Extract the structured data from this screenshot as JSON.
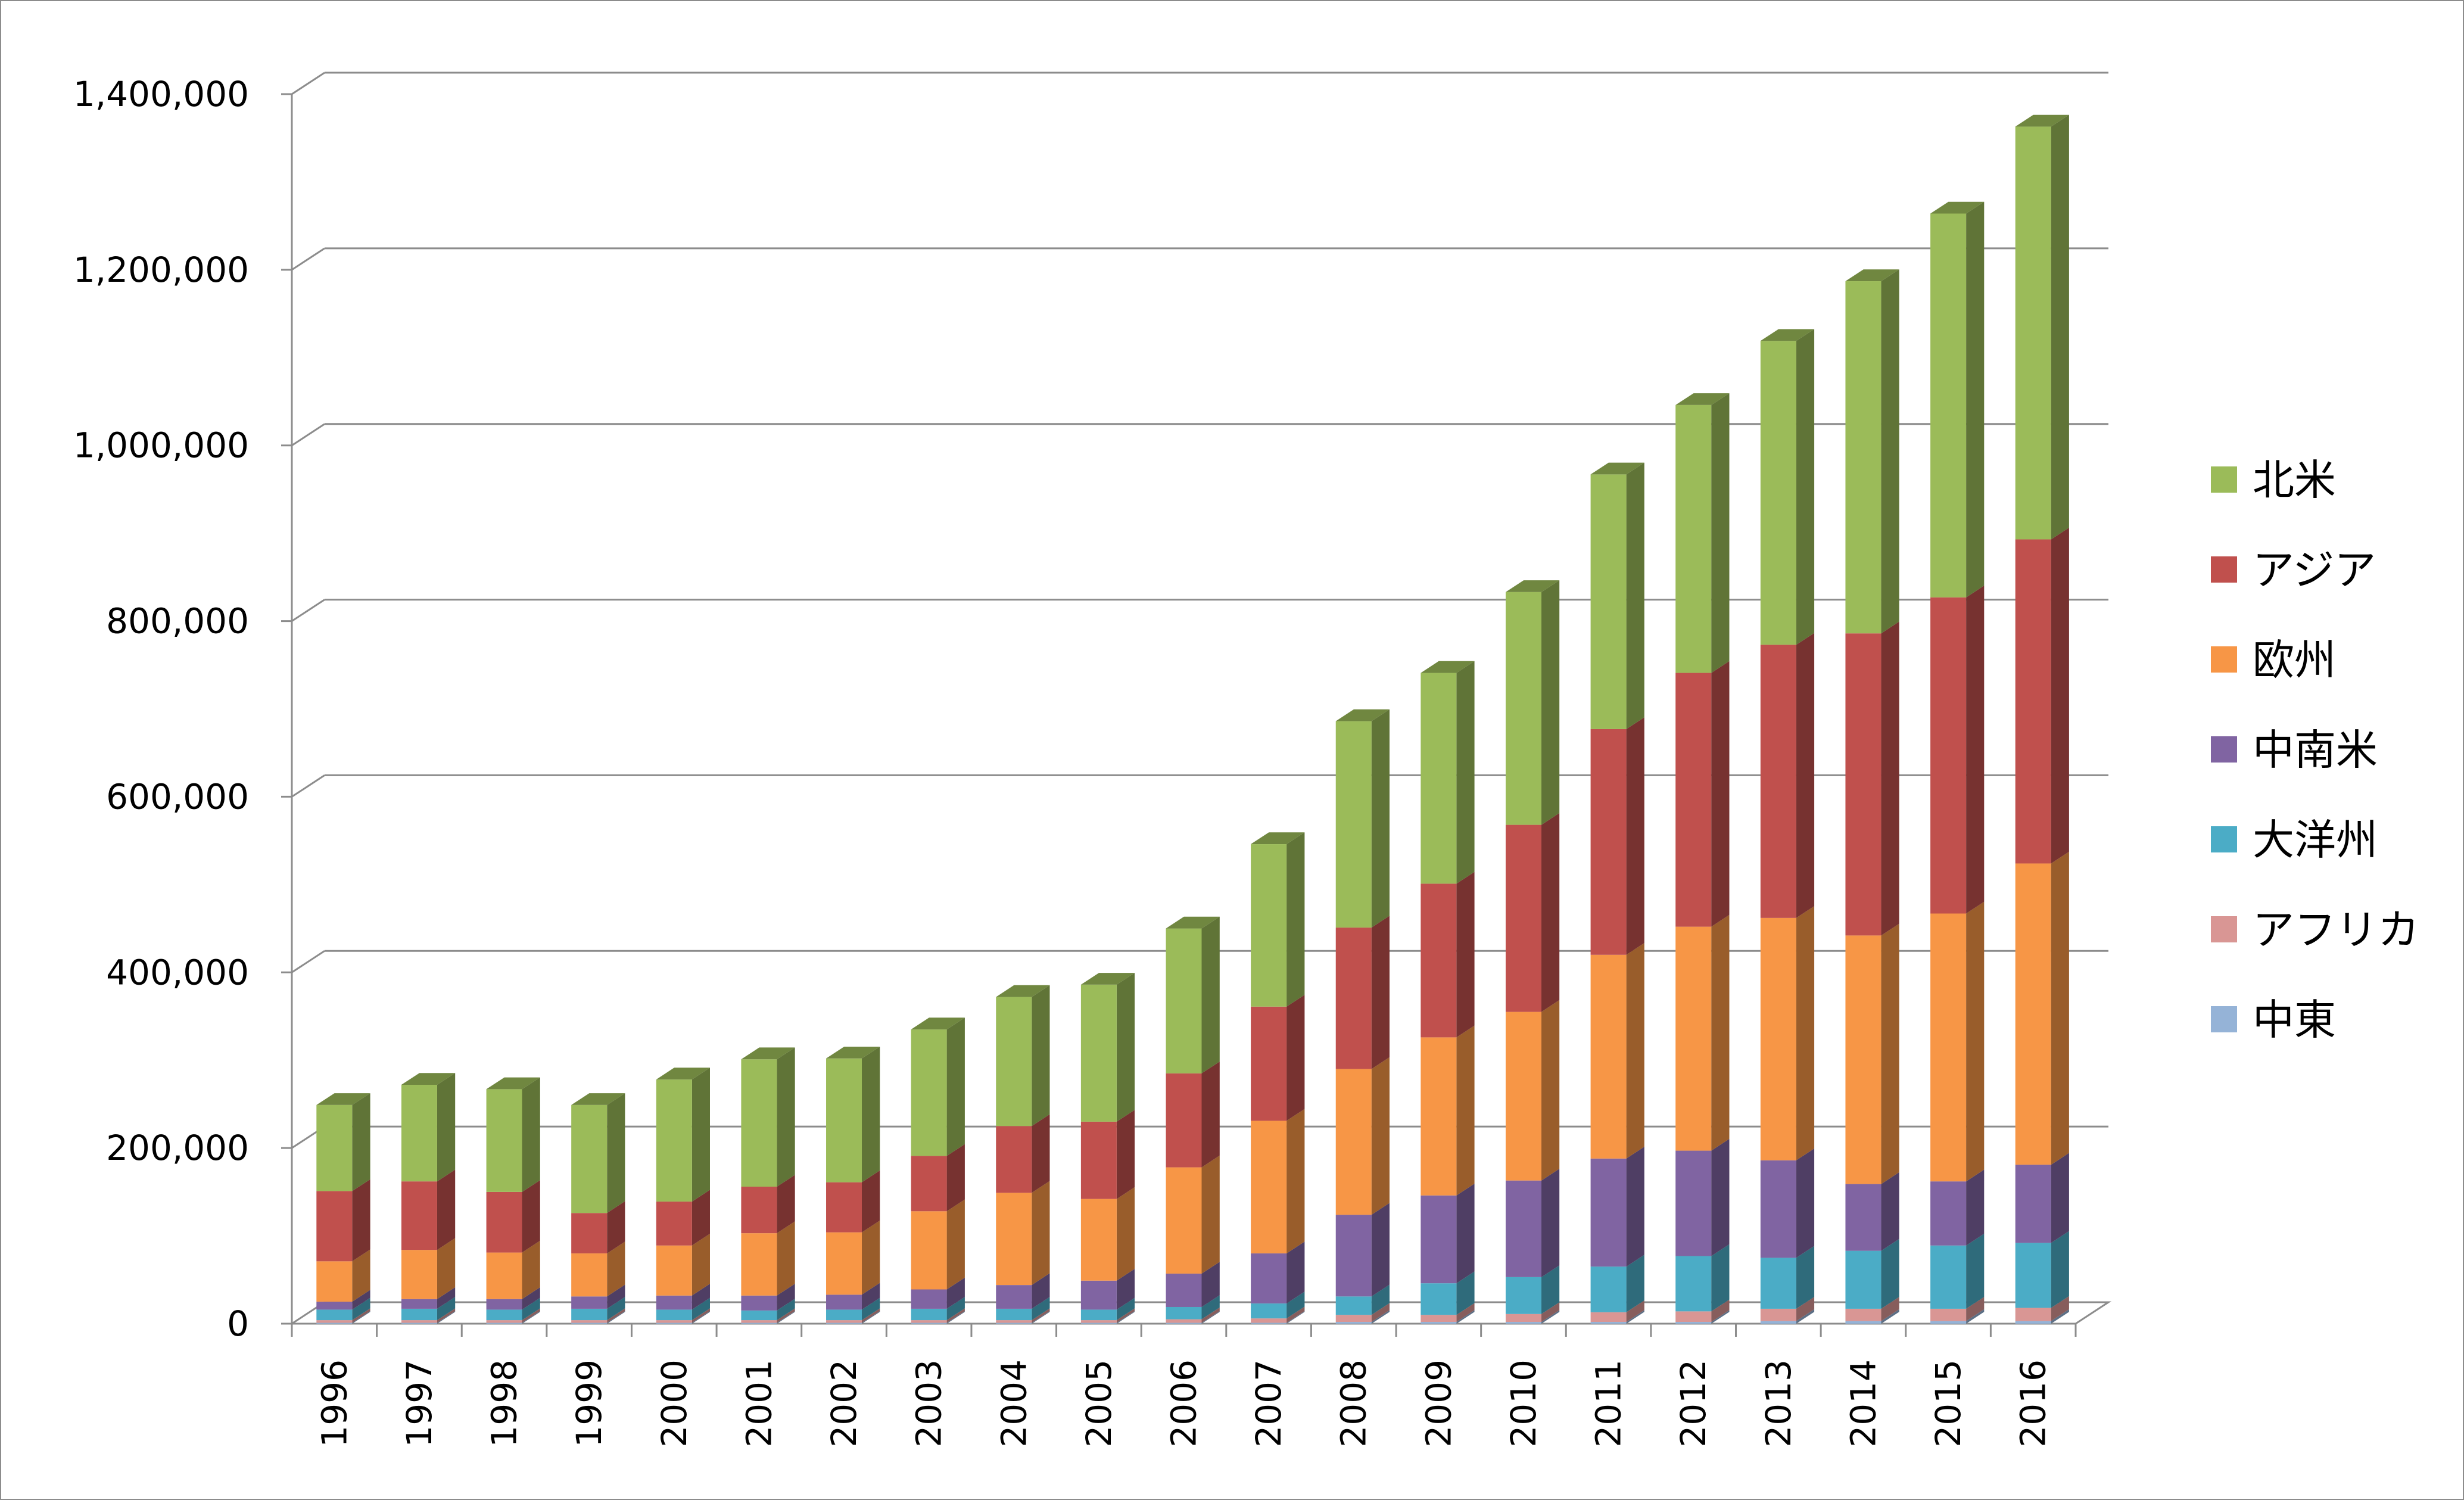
{
  "chart_data": {
    "type": "bar",
    "stacked": true,
    "three_d": true,
    "categories": [
      "1996",
      "1997",
      "1998",
      "1999",
      "2000",
      "2001",
      "2002",
      "2003",
      "2004",
      "2005",
      "2006",
      "2007",
      "2008",
      "2009",
      "2010",
      "2011",
      "2012",
      "2013",
      "2014",
      "2015",
      "2016"
    ],
    "ylim": [
      0,
      1400000
    ],
    "yticks": [
      0,
      200000,
      400000,
      600000,
      800000,
      1000000,
      1200000,
      1400000
    ],
    "ytick_labels": [
      "0",
      "200,000",
      "400,000",
      "600,000",
      "800,000",
      "1,000,000",
      "1,200,000",
      "1,400,000"
    ],
    "grid": true,
    "legend_position": "right",
    "series": [
      {
        "name": "中東",
        "color": "#95b3d7",
        "values": [
          1000,
          1000,
          1000,
          1000,
          1000,
          1000,
          1000,
          1000,
          1000,
          1000,
          1000,
          1000,
          2000,
          2000,
          2000,
          2000,
          2000,
          3000,
          3000,
          3000,
          3000
        ]
      },
      {
        "name": "アフリカ",
        "color": "#d99694",
        "values": [
          3000,
          3000,
          3000,
          3000,
          3000,
          3000,
          3000,
          3000,
          3000,
          3000,
          4000,
          5000,
          8000,
          8000,
          9000,
          11000,
          12000,
          14000,
          14000,
          14000,
          15000
        ]
      },
      {
        "name": "大洋州",
        "color": "#4bacc6",
        "values": [
          12000,
          13000,
          12000,
          13000,
          12000,
          11000,
          12000,
          13000,
          13000,
          12000,
          14000,
          17000,
          21000,
          36000,
          42000,
          52000,
          63000,
          58000,
          66000,
          72000,
          74000
        ]
      },
      {
        "name": "中南米",
        "color": "#8064a2",
        "values": [
          9000,
          11000,
          12000,
          14000,
          16000,
          17000,
          17000,
          22000,
          27000,
          33000,
          38000,
          57000,
          93000,
          100000,
          110000,
          123000,
          120000,
          111000,
          76000,
          73000,
          89000
        ]
      },
      {
        "name": "欧州",
        "color": "#f79646",
        "values": [
          46000,
          56000,
          53000,
          49000,
          57000,
          71000,
          71000,
          89000,
          105000,
          93000,
          121000,
          151000,
          166000,
          180000,
          192000,
          232000,
          255000,
          276000,
          283000,
          305000,
          343000
        ]
      },
      {
        "name": "アジア",
        "color": "#c0504d",
        "values": [
          80000,
          78000,
          69000,
          46000,
          50000,
          53000,
          57000,
          63000,
          76000,
          88000,
          107000,
          130000,
          161000,
          175000,
          213000,
          257000,
          289000,
          311000,
          344000,
          360000,
          369000
        ]
      },
      {
        "name": "北米",
        "color": "#9bbb59",
        "values": [
          98000,
          110000,
          117000,
          123000,
          139000,
          145000,
          141000,
          144000,
          147000,
          156000,
          165000,
          185000,
          235000,
          240000,
          265000,
          290000,
          305000,
          346000,
          401000,
          437000,
          470000
        ]
      }
    ]
  }
}
